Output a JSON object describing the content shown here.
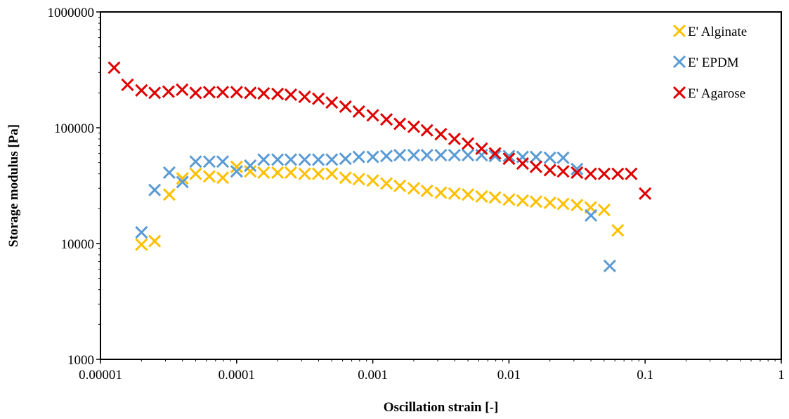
{
  "chart_data": {
    "type": "scatter",
    "title": "",
    "xlabel": "Oscillation strain [-]",
    "ylabel": "Storage modulus [Pa]",
    "xscale": "log",
    "yscale": "log",
    "xlim": [
      1e-05,
      1
    ],
    "ylim": [
      1000,
      1000000
    ],
    "x_ticks": [
      1e-05,
      0.0001,
      0.001,
      0.01,
      0.1,
      1
    ],
    "x_tick_labels": [
      "0.00001",
      "0.0001",
      "0.001",
      "0.01",
      "0.1",
      "1"
    ],
    "y_ticks": [
      1000,
      10000,
      100000,
      1000000
    ],
    "y_tick_labels": [
      "1000",
      "10000",
      "100000",
      "1000000"
    ],
    "grid": false,
    "legend_position": "top-right",
    "marker": "x",
    "series": [
      {
        "name": "E' Alginate",
        "color": "#FFC000",
        "x": [
          2e-05,
          2.5e-05,
          3.2e-05,
          4e-05,
          5e-05,
          6.3e-05,
          7.9e-05,
          0.0001,
          0.000126,
          0.000158,
          0.0002,
          0.00025,
          0.000316,
          0.000398,
          0.0005,
          0.00063,
          0.00079,
          0.001,
          0.00126,
          0.00158,
          0.002,
          0.0025,
          0.00316,
          0.00398,
          0.005,
          0.0063,
          0.0079,
          0.01,
          0.0126,
          0.0158,
          0.02,
          0.025,
          0.0316,
          0.0398,
          0.05,
          0.063
        ],
        "y": [
          9800,
          10500,
          26500,
          36500,
          40000,
          38000,
          37000,
          46000,
          42000,
          41000,
          41000,
          41000,
          40000,
          40000,
          40000,
          37000,
          36000,
          35000,
          33000,
          31500,
          30000,
          28500,
          27500,
          27000,
          26500,
          25500,
          25000,
          24000,
          23500,
          23000,
          22500,
          22000,
          21500,
          20500,
          19500,
          13000
        ]
      },
      {
        "name": "E' EPDM",
        "color": "#5B9BD5",
        "x": [
          2e-05,
          2.5e-05,
          3.2e-05,
          4e-05,
          5e-05,
          6.3e-05,
          7.9e-05,
          0.0001,
          0.000126,
          0.000158,
          0.0002,
          0.00025,
          0.000316,
          0.000398,
          0.0005,
          0.00063,
          0.00079,
          0.001,
          0.00126,
          0.00158,
          0.002,
          0.0025,
          0.00316,
          0.00398,
          0.005,
          0.0063,
          0.0079,
          0.01,
          0.0126,
          0.0158,
          0.02,
          0.025,
          0.0316,
          0.04,
          0.055
        ],
        "y": [
          12500,
          29000,
          41000,
          34000,
          51000,
          51000,
          51000,
          42000,
          47000,
          53000,
          53000,
          53000,
          53000,
          53000,
          53000,
          54000,
          56000,
          56000,
          57000,
          58000,
          58000,
          58000,
          58000,
          58000,
          58000,
          58000,
          57000,
          57000,
          56000,
          56000,
          55000,
          55000,
          44000,
          17500,
          6400
        ]
      },
      {
        "name": "E' Agarose",
        "color": "#E00000",
        "x": [
          1.26e-05,
          1.58e-05,
          2e-05,
          2.5e-05,
          3.16e-05,
          3.98e-05,
          5e-05,
          6.3e-05,
          7.9e-05,
          0.0001,
          0.000126,
          0.000158,
          0.0002,
          0.00025,
          0.000316,
          0.000398,
          0.0005,
          0.00063,
          0.00079,
          0.001,
          0.00126,
          0.00158,
          0.002,
          0.0025,
          0.00316,
          0.00398,
          0.005,
          0.0063,
          0.0079,
          0.01,
          0.0126,
          0.0158,
          0.02,
          0.025,
          0.0316,
          0.0398,
          0.05,
          0.063,
          0.079,
          0.1
        ],
        "y": [
          330000,
          235000,
          210000,
          200000,
          205000,
          213000,
          200000,
          203000,
          203000,
          203000,
          200000,
          198000,
          196000,
          193000,
          185000,
          178000,
          165000,
          152000,
          138000,
          128000,
          118000,
          108000,
          102000,
          95000,
          88000,
          80000,
          73000,
          66000,
          60000,
          54000,
          49000,
          46000,
          43000,
          42000,
          41000,
          40000,
          40000,
          40000,
          40000,
          27000
        ]
      }
    ]
  }
}
